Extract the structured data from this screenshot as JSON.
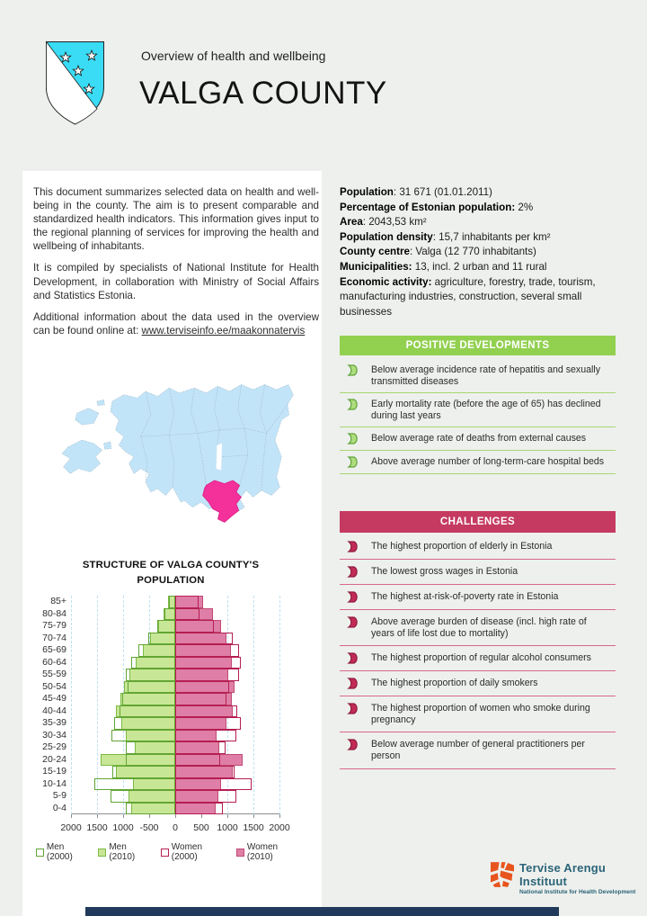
{
  "page": {
    "bg": "#EEF0ED",
    "panel_bg": "#FFFFFF",
    "bottom_bar_color": "#21395B"
  },
  "header": {
    "subtitle": "Overview of health and wellbeing",
    "title": "VALGA COUNTY",
    "shield": {
      "field_color": "#3ADCF5"
    }
  },
  "intro": {
    "p1": "This document summarizes selected data on health and well-being in the county. The aim is to present comparable and standardized health indicators. This information gives input to the regional planning of services for improving the health and wellbeing of inhabitants.",
    "p2": "It is compiled by specialists of National Institute for Health Development, in collaboration with Ministry of Social Affairs and Statistics Estonia.",
    "p3_prefix": "Additional information about the data used in the overview can be found online at: ",
    "link": "www.terviseinfo.ee/maakonnatervis"
  },
  "stats": {
    "items": [
      {
        "label": "Population",
        "value": ": 31 671 (01.01.2011)"
      },
      {
        "label": "Percentage of Estonian population:",
        "value": " 2%"
      },
      {
        "label": "Area",
        "value": ": 2043,53 km²"
      },
      {
        "label": "Population density",
        "value": ": 15,7 inhabitants per km²"
      },
      {
        "label": "County centre",
        "value": ": Valga (12 770 inhabitants)"
      },
      {
        "label": "Municipalities:",
        "value": " 13, incl. 2 urban and 11 rural"
      },
      {
        "label": "Economic activity:",
        "value": " agriculture, forestry, trade, tourism, manufacturing industries, construction, several small businesses"
      }
    ]
  },
  "positive": {
    "title": "POSITIVE DEVELOPMENTS",
    "band_color": "#92D050",
    "separator_color": "#A9D572",
    "icon": {
      "fill": "#AEDC7E",
      "stroke": "#5FA33A"
    },
    "items": [
      "Below average incidence rate of hepatitis and sexually transmitted diseases",
      "Early mortality rate (before the age of 65) has declined during last years",
      "Below average rate of deaths from external causes",
      "Above average number of long-term-care hospital beds"
    ]
  },
  "challenges": {
    "title": "CHALLENGES",
    "band_color": "#C53A60",
    "separator_color": "#D8688C",
    "icon": {
      "fill": "#C22B56",
      "stroke": "#8F1C3F"
    },
    "items": [
      "The highest proportion of elderly in Estonia",
      "The lowest gross wages in Estonia",
      "The highest at-risk-of-poverty rate in Estonia",
      "Above average burden of disease (incl. high rate of years of life lost due to mortality)",
      "The highest proportion of regular alcohol consumers",
      "The highest proportion of daily smokers",
      "The highest proportion of women who smoke during pregnancy",
      "Below average number of general practitioners per person"
    ]
  },
  "map": {
    "land_color": "#C2E4F8",
    "border_color": "#9FB9C9",
    "highlight_color": "#F4309B",
    "highlight_name": "Valga county"
  },
  "chart_data": {
    "type": "bar",
    "subtype": "population_pyramid",
    "title": "STRUCTURE OF VALGA COUNTY'S POPULATION",
    "age_groups_top_to_bottom": [
      "85+",
      "80-84",
      "75-79",
      "70-74",
      "65-69",
      "60-64",
      "55-59",
      "50-54",
      "45-49",
      "40-44",
      "35-39",
      "30-34",
      "25-29",
      "20-24",
      "15-19",
      "10-14",
      "5-9",
      "0-4"
    ],
    "series": [
      {
        "name": "Men (2000)",
        "side": "left",
        "style": "outline",
        "color": "#62A534",
        "values": [
          120,
          200,
          350,
          510,
          700,
          840,
          940,
          910,
          1010,
          1070,
          1180,
          1230,
          940,
          940,
          1200,
          1550,
          1240,
          950
        ]
      },
      {
        "name": "Men (2010)",
        "side": "left",
        "style": "fill",
        "color": "#C8E796",
        "border_color": "#7CBB45",
        "values": [
          145,
          230,
          320,
          480,
          620,
          760,
          880,
          990,
          1060,
          1140,
          1030,
          950,
          780,
          1430,
          1130,
          810,
          900,
          840
        ]
      },
      {
        "name": "Women (2000)",
        "side": "right",
        "style": "outline",
        "color": "#B51E52",
        "values": [
          450,
          470,
          745,
          1100,
          1230,
          1260,
          1230,
          1030,
          990,
          1190,
          1260,
          1180,
          960,
          860,
          1140,
          1470,
          1180,
          920
        ]
      },
      {
        "name": "Women (2010)",
        "side": "right",
        "style": "fill",
        "color": "#DF7FA7",
        "border_color": "#C14A72",
        "values": [
          530,
          720,
          880,
          990,
          1070,
          1080,
          1020,
          1130,
          1080,
          1110,
          990,
          790,
          840,
          1300,
          1100,
          880,
          820,
          780
        ]
      }
    ],
    "x_axis": {
      "tick_labels": [
        "2000",
        "1500",
        "1000",
        "-500",
        "0",
        "500",
        "1000",
        "1500",
        "2000"
      ],
      "unit_max": 2000,
      "grid_step": 500,
      "gridline_color": "#BFE2F1"
    },
    "legend": [
      "Men (2000)",
      "Men (2010)",
      "Women (2000)",
      "Women (2010)"
    ]
  },
  "footer": {
    "logo_title": "Tervise Arengu Instituut",
    "logo_subtitle": "National Institute for Health Development",
    "logo_color": "#2B6478",
    "logo_icon_color": "#E8541D"
  }
}
